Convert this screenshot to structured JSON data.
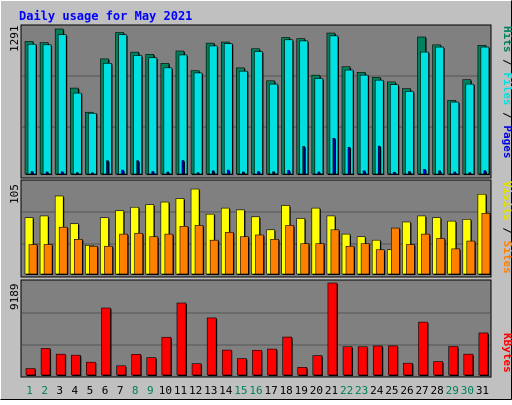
{
  "title": "Daily usage for May 2021",
  "colors": {
    "background": "#C0C0C0",
    "panel": "#808080",
    "hits": "#00805C",
    "files": "#00E0E0",
    "pages": "#0000E0",
    "visits": "#FFFF00",
    "sites": "#FF8000",
    "kbytes": "#FF0000",
    "title_text": "#0000FF",
    "weekend_day": "#00805C",
    "weekday_day": "#000000"
  },
  "chart_data": [
    {
      "type": "bar",
      "categories": [
        "1",
        "2",
        "3",
        "4",
        "5",
        "6",
        "7",
        "8",
        "9",
        "10",
        "11",
        "12",
        "13",
        "14",
        "15",
        "16",
        "17",
        "18",
        "19",
        "20",
        "21",
        "22",
        "23",
        "24",
        "25",
        "26",
        "27",
        "28",
        "29",
        "30",
        "31"
      ],
      "weekend_days": [
        "1",
        "2",
        "8",
        "9",
        "15",
        "16",
        "22",
        "23",
        "29",
        "30"
      ],
      "axis_max_label": "1291",
      "ylim": [
        0,
        1291
      ],
      "legend": [
        {
          "text": "Hits",
          "color": "#00805C"
        },
        {
          "text": "Files",
          "color": "#00E0E0"
        },
        {
          "text": "Pages",
          "color": "#0000E0"
        }
      ],
      "series": [
        {
          "name": "Hits",
          "values": [
            1180,
            1170,
            1291,
            765,
            550,
            1025,
            1260,
            1085,
            1065,
            985,
            1095,
            920,
            1165,
            1175,
            945,
            1115,
            830,
            1215,
            1205,
            880,
            1255,
            955,
            905,
            860,
            820,
            760,
            1220,
            1150,
            655,
            840,
            1145
          ]
        },
        {
          "name": "Files",
          "values": [
            1155,
            1150,
            1240,
            720,
            540,
            985,
            1240,
            1055,
            1035,
            945,
            1060,
            900,
            1140,
            1160,
            915,
            1090,
            800,
            1195,
            1185,
            850,
            1230,
            925,
            880,
            835,
            795,
            735,
            1085,
            1130,
            640,
            800,
            1130
          ]
        },
        {
          "name": "Pages",
          "values": [
            22,
            18,
            20,
            12,
            10,
            118,
            35,
            118,
            22,
            18,
            120,
            12,
            28,
            35,
            18,
            22,
            20,
            32,
            245,
            18,
            318,
            238,
            28,
            248,
            16,
            22,
            42,
            28,
            18,
            12,
            30
          ]
        }
      ]
    },
    {
      "type": "bar",
      "categories": [
        "1",
        "2",
        "3",
        "4",
        "5",
        "6",
        "7",
        "8",
        "9",
        "10",
        "11",
        "12",
        "13",
        "14",
        "15",
        "16",
        "17",
        "18",
        "19",
        "20",
        "21",
        "22",
        "23",
        "24",
        "25",
        "26",
        "27",
        "28",
        "29",
        "30",
        "31"
      ],
      "axis_max_label": "105",
      "ylim": [
        0,
        105
      ],
      "legend": [
        {
          "text": "Visits",
          "color": "#FFFF00"
        },
        {
          "text": "Sites",
          "color": "#FF8000"
        }
      ],
      "series": [
        {
          "name": "Visits",
          "values": [
            65,
            67,
            90,
            58,
            33,
            65,
            73,
            77,
            80,
            83,
            87,
            98,
            69,
            76,
            74,
            66,
            51,
            79,
            64,
            76,
            67,
            46,
            43,
            39,
            28,
            60,
            67,
            65,
            61,
            63,
            92
          ]
        },
        {
          "name": "Sites",
          "values": [
            34,
            34,
            54,
            40,
            32,
            32,
            46,
            47,
            43,
            46,
            55,
            56,
            39,
            48,
            43,
            45,
            40,
            56,
            35,
            35,
            51,
            32,
            35,
            28,
            53,
            34,
            46,
            41,
            29,
            38,
            70
          ]
        }
      ]
    },
    {
      "type": "bar",
      "categories": [
        "1",
        "2",
        "3",
        "4",
        "5",
        "6",
        "7",
        "8",
        "9",
        "10",
        "11",
        "12",
        "13",
        "14",
        "15",
        "16",
        "17",
        "18",
        "19",
        "20",
        "21",
        "22",
        "23",
        "24",
        "25",
        "26",
        "27",
        "28",
        "29",
        "30",
        "31"
      ],
      "axis_max_label": "9189",
      "ylim": [
        0,
        9189
      ],
      "legend": [
        {
          "text": "KBytes",
          "color": "#FF0000"
        }
      ],
      "series": [
        {
          "name": "KBytes",
          "values": [
            640,
            2650,
            2080,
            1980,
            1280,
            6690,
            920,
            2070,
            1740,
            3770,
            7190,
            1130,
            5700,
            2490,
            1640,
            2470,
            2590,
            3790,
            760,
            1940,
            9189,
            2820,
            2820,
            2900,
            2900,
            1180,
            5280,
            1340,
            2850,
            2080,
            4200
          ]
        }
      ]
    }
  ]
}
